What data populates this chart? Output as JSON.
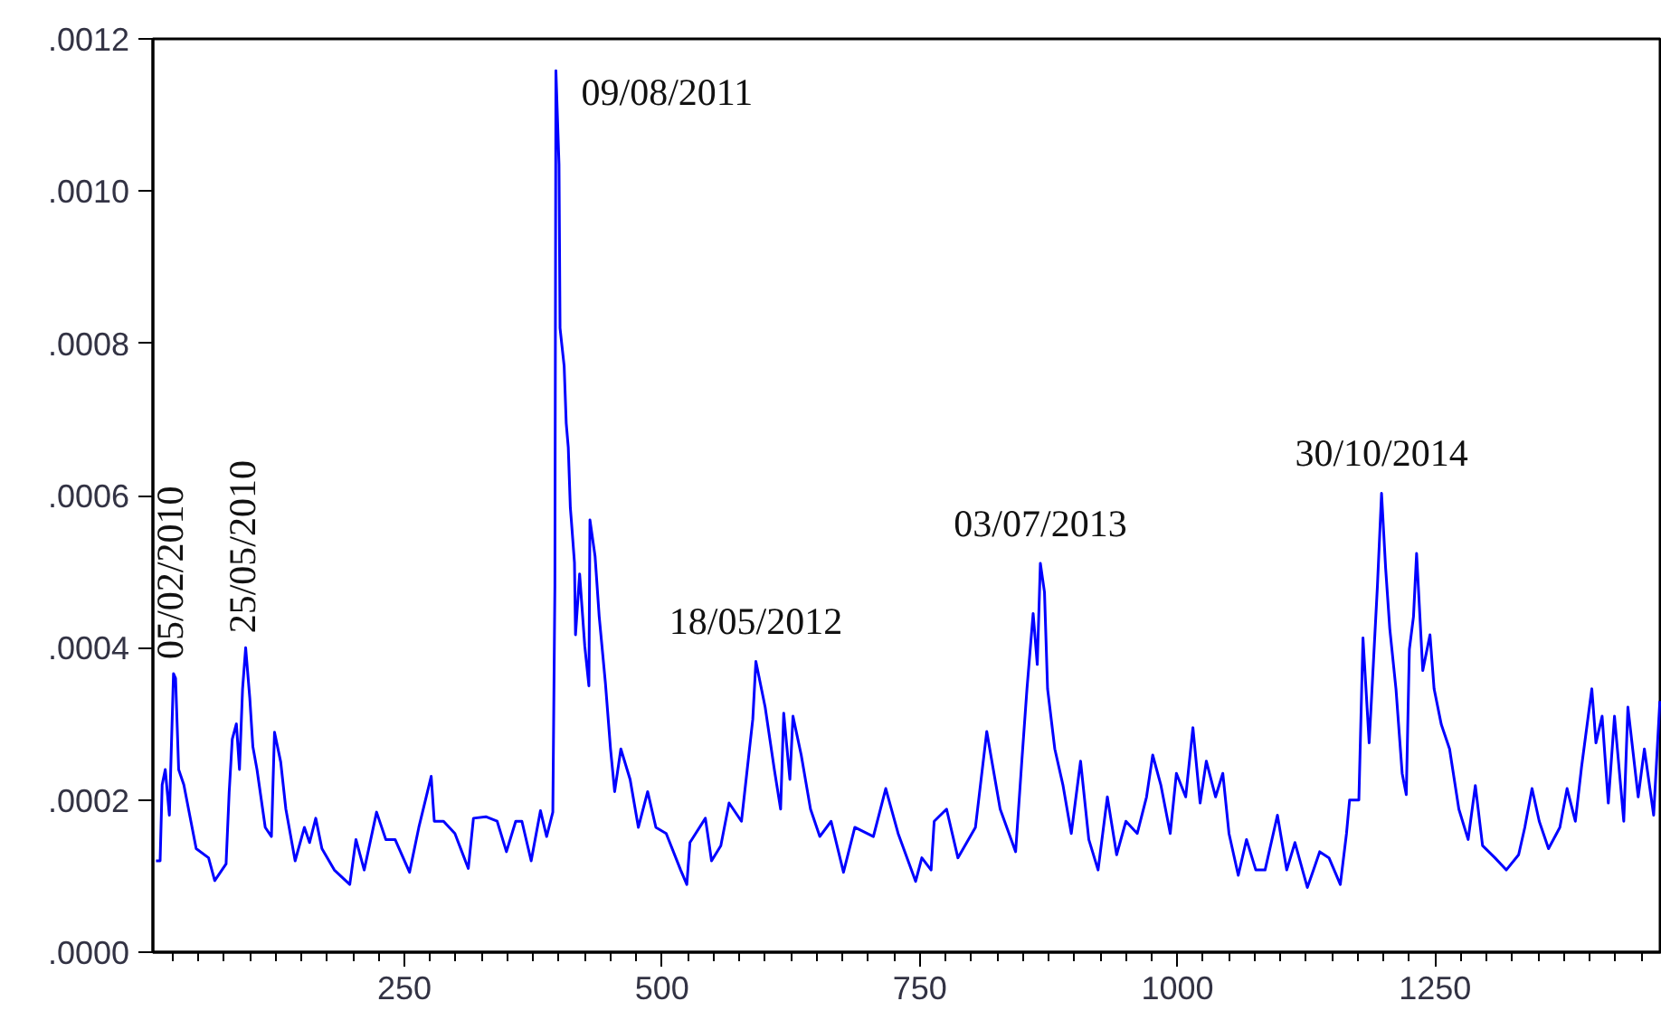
{
  "chart_data": {
    "type": "line",
    "x": [
      9,
      13,
      15,
      18,
      22,
      26,
      28,
      31,
      36,
      48,
      60,
      66,
      77,
      80,
      83,
      87,
      90,
      93,
      96,
      100,
      103,
      107,
      115,
      121,
      124,
      130,
      135,
      144,
      153,
      158,
      164,
      170,
      182,
      197,
      203,
      211,
      223,
      232,
      241,
      255,
      264,
      276,
      279,
      288,
      299,
      312,
      317,
      329,
      340,
      349,
      358,
      364,
      373,
      382,
      388,
      394,
      396,
      397,
      400,
      401,
      405,
      407,
      409,
      411,
      412,
      415,
      416,
      420,
      425,
      429,
      430,
      435,
      439,
      445,
      450,
      454,
      460,
      469,
      477,
      486,
      494,
      504,
      518,
      524,
      527,
      542,
      548,
      557,
      565,
      577,
      588,
      591,
      600,
      609,
      615,
      618,
      624,
      627,
      635,
      644,
      653,
      664,
      676,
      687,
      705,
      717,
      729,
      746,
      752,
      761,
      764,
      776,
      787,
      804,
      815,
      822,
      828,
      843,
      849,
      854,
      860,
      864,
      867,
      871,
      874,
      881,
      889,
      897,
      906,
      914,
      923,
      932,
      941,
      950,
      961,
      970,
      976,
      984,
      993,
      999,
      1008,
      1015,
      1022,
      1028,
      1037,
      1044,
      1050,
      1059,
      1067,
      1076,
      1085,
      1097,
      1106,
      1114,
      1126,
      1132,
      1138,
      1147,
      1158,
      1164,
      1167,
      1176,
      1180,
      1186,
      1190,
      1194,
      1198,
      1202,
      1206,
      1212,
      1218,
      1222,
      1225,
      1229,
      1232,
      1238,
      1245,
      1249,
      1256,
      1264,
      1273,
      1282,
      1289,
      1296,
      1308,
      1319,
      1331,
      1337,
      1344,
      1351,
      1360,
      1371,
      1378,
      1386,
      1392,
      1402,
      1406,
      1412,
      1418,
      1424,
      1433,
      1437,
      1447,
      1453,
      1462,
      1468
    ],
    "series": [
      {
        "color": "#0000ff",
        "values": [
          0.00012,
          0.00012,
          0.00022,
          0.00024,
          0.00018,
          0.000366,
          0.00036,
          0.00024,
          0.00022,
          0.000136,
          0.000124,
          9.4e-05,
          0.000116,
          0.00021,
          0.00028,
          0.0003,
          0.00024,
          0.000346,
          0.0004,
          0.000334,
          0.00027,
          0.00024,
          0.000164,
          0.000152,
          0.000289,
          0.00025,
          0.000188,
          0.00012,
          0.000164,
          0.000144,
          0.000176,
          0.000136,
          0.000108,
          8.9e-05,
          0.000148,
          0.000108,
          0.000184,
          0.000148,
          0.000148,
          0.000105,
          0.000164,
          0.000231,
          0.000172,
          0.000172,
          0.000156,
          0.00011,
          0.000176,
          0.000178,
          0.000172,
          0.000132,
          0.000172,
          0.000172,
          0.00012,
          0.000186,
          0.000152,
          0.000184,
          0.00048,
          0.001158,
          0.001035,
          0.00082,
          0.00077,
          0.000695,
          0.000663,
          0.000584,
          0.000567,
          0.000512,
          0.000417,
          0.000497,
          0.000402,
          0.00035,
          0.000568,
          0.00052,
          0.000441,
          0.000354,
          0.000267,
          0.000211,
          0.000267,
          0.000227,
          0.000164,
          0.000211,
          0.000164,
          0.000156,
          0.000108,
          8.9e-05,
          0.000144,
          0.000176,
          0.00012,
          0.00014,
          0.000196,
          0.000172,
          0.000306,
          0.000382,
          0.000322,
          0.000239,
          0.000188,
          0.000314,
          0.000227,
          0.00031,
          0.000259,
          0.000188,
          0.000152,
          0.000172,
          0.000105,
          0.000164,
          0.000152,
          0.000215,
          0.000156,
          9.3e-05,
          0.000124,
          0.000108,
          0.000172,
          0.000188,
          0.000124,
          0.000164,
          0.00029,
          0.000235,
          0.000188,
          0.000132,
          0.000251,
          0.000346,
          0.000445,
          0.000378,
          0.000511,
          0.000473,
          0.000346,
          0.000267,
          0.000219,
          0.000156,
          0.000251,
          0.000148,
          0.000108,
          0.000204,
          0.000128,
          0.000172,
          0.000156,
          0.000204,
          0.000259,
          0.000219,
          0.000156,
          0.000235,
          0.000204,
          0.000295,
          0.000196,
          0.000251,
          0.000204,
          0.000235,
          0.000156,
          0.000101,
          0.000148,
          0.000108,
          0.000108,
          0.00018,
          0.000108,
          0.000144,
          8.5e-05,
          0.000108,
          0.000132,
          0.000124,
          8.9e-05,
          0.000156,
          0.0002,
          0.0002,
          0.000413,
          0.000275,
          0.000378,
          0.000481,
          0.000603,
          0.000504,
          0.000425,
          0.000346,
          0.000235,
          0.000207,
          0.000398,
          0.000441,
          0.000524,
          0.00037,
          0.000417,
          0.000346,
          0.000299,
          0.000267,
          0.000188,
          0.000148,
          0.000219,
          0.00014,
          0.000124,
          0.000108,
          0.000128,
          0.000164,
          0.000215,
          0.000172,
          0.000136,
          0.000164,
          0.000215,
          0.000172,
          0.000243,
          0.000346,
          0.000275,
          0.00031,
          0.000196,
          0.00031,
          0.000172,
          0.000322,
          0.000204,
          0.000267,
          0.00018,
          0.00033
        ]
      }
    ],
    "xlim": [
      6,
      1470
    ],
    "xticks": [
      250,
      500,
      750,
      1000,
      1250
    ],
    "ylim": [
      0,
      0.0012
    ],
    "yticks": [
      {
        "value": 0,
        "label": ".0000"
      },
      {
        "value": 0.0002,
        "label": ".0002"
      },
      {
        "value": 0.0004,
        "label": ".0004"
      },
      {
        "value": 0.0006,
        "label": ".0006"
      },
      {
        "value": 0.0008,
        "label": ".0008"
      },
      {
        "value": 0.001,
        "label": ".0010"
      },
      {
        "value": 0.0012,
        "label": ".0012"
      }
    ],
    "grid": false,
    "marker": "none",
    "line_style": "solid",
    "annotations": [
      {
        "text": "05/02/2010",
        "x": 26,
        "y": 0.000366
      },
      {
        "text": "25/05/2010",
        "x": 96,
        "y": 0.0004
      },
      {
        "text": "09/08/2011",
        "x": 397,
        "y": 0.001158
      },
      {
        "text": "18/05/2012",
        "x": 591,
        "y": 0.000382
      },
      {
        "text": "03/07/2013",
        "x": 867,
        "y": 0.000511
      },
      {
        "text": "30/10/2014",
        "x": 1198,
        "y": 0.000603
      }
    ]
  }
}
